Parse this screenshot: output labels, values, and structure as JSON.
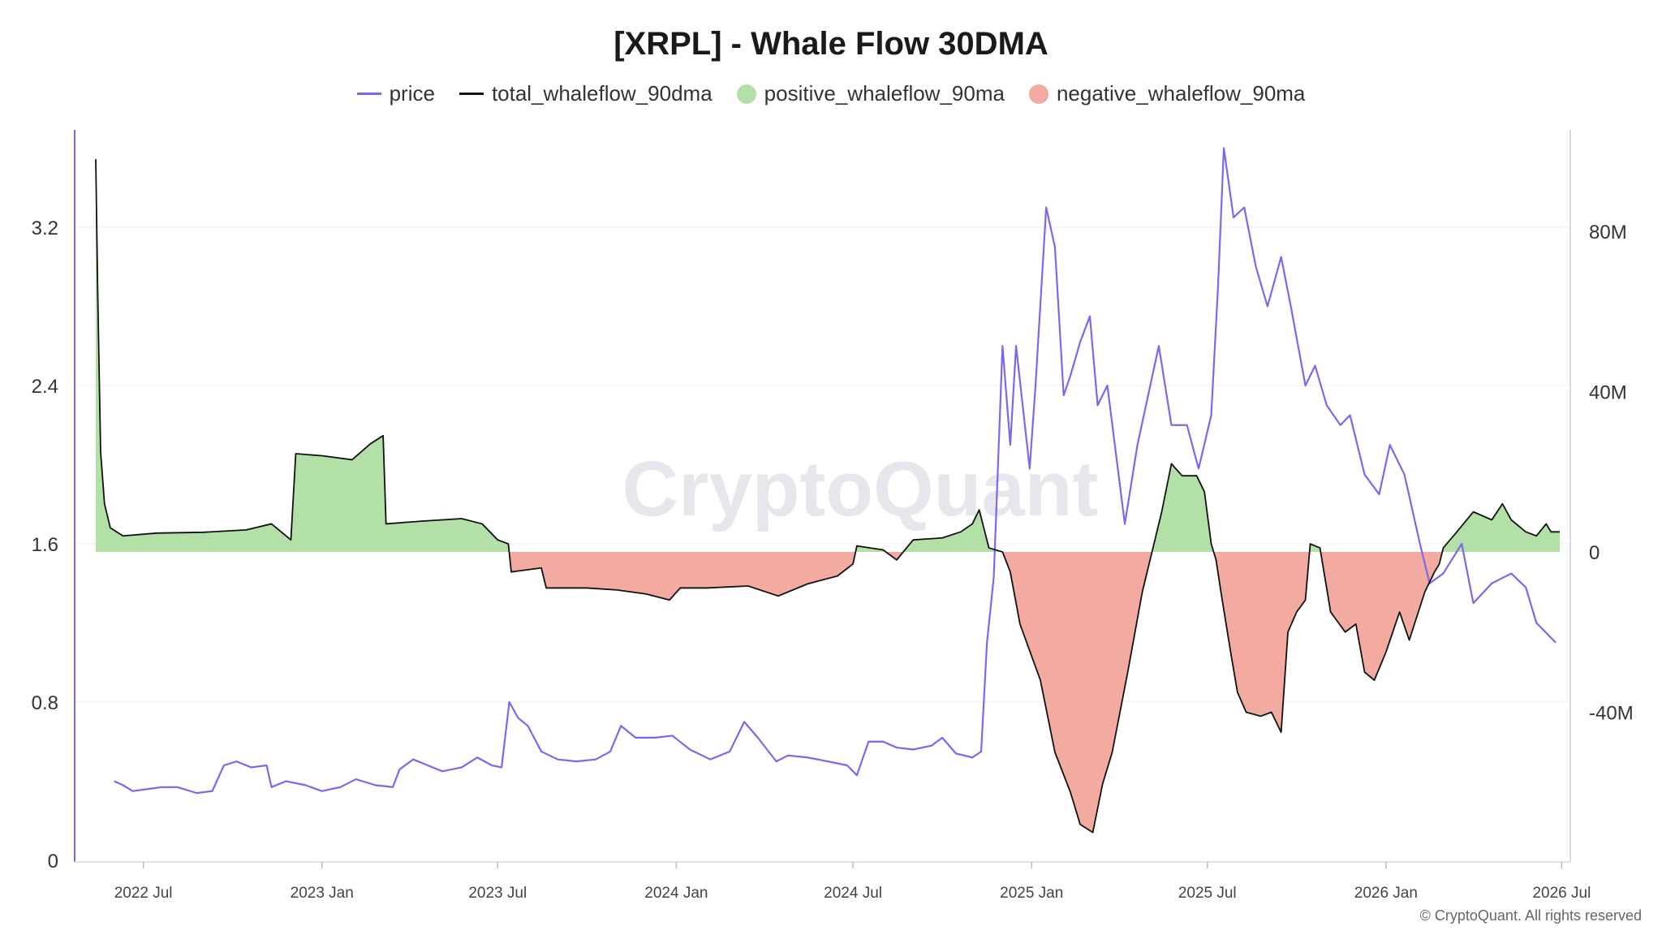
{
  "title": "[XRPL] - Whale Flow 30DMA",
  "legend": [
    {
      "label": "price",
      "color": "#7b68ee",
      "kind": "line"
    },
    {
      "label": "total_whaleflow_90dma",
      "color": "#111111",
      "kind": "line"
    },
    {
      "label": "positive_whaleflow_90ma",
      "color": "#b2e0a6",
      "kind": "dot"
    },
    {
      "label": "negative_whaleflow_90ma",
      "color": "#f2aaa1",
      "kind": "dot"
    }
  ],
  "watermark": "CryptoQuant",
  "copyright": "© CryptoQuant. All rights reserved",
  "chart_data": {
    "type": "line",
    "title": "[XRPL] - Whale Flow 30DMA",
    "grid": true,
    "legend_position": "top-center",
    "x_range": [
      "2022-05-13",
      "2026-06-29"
    ],
    "x_ticks": [
      {
        "date": "2022-07-01",
        "label": "2022 Jul"
      },
      {
        "date": "2023-01-01",
        "label": "2023 Jan"
      },
      {
        "date": "2023-07-01",
        "label": "2023 Jul"
      },
      {
        "date": "2024-01-01",
        "label": "2024 Jan"
      },
      {
        "date": "2024-07-01",
        "label": "2024 Jul"
      },
      {
        "date": "2025-01-01",
        "label": "2025 Jan"
      },
      {
        "date": "2025-07-01",
        "label": "2025 Jul"
      },
      {
        "date": "2026-01-01",
        "label": "2026 Jan"
      },
      {
        "date": "2026-07-01",
        "label": "2026 Jul"
      }
    ],
    "y_left": {
      "min": 0,
      "max": 3.3,
      "ticks": [
        0,
        0.8,
        1.6,
        2.4,
        3.2
      ],
      "tick_labels": [
        "0",
        "0.8",
        "1.6",
        "2.4",
        "3.2"
      ]
    },
    "y_right": {
      "min": -80000000,
      "max": 100000000,
      "ticks": [
        -40000000,
        0,
        40000000,
        80000000
      ],
      "tick_labels": [
        "-40M",
        "0",
        "40M",
        "80M"
      ]
    },
    "series": [
      {
        "name": "price",
        "axis": "left",
        "color": "#7b68ee",
        "points": [
          [
            "2022-06-01",
            0.4
          ],
          [
            "2022-06-10",
            0.38
          ],
          [
            "2022-06-20",
            0.35
          ],
          [
            "2022-07-05",
            0.36
          ],
          [
            "2022-07-20",
            0.37
          ],
          [
            "2022-08-05",
            0.37
          ],
          [
            "2022-08-25",
            0.34
          ],
          [
            "2022-09-10",
            0.35
          ],
          [
            "2022-09-22",
            0.48
          ],
          [
            "2022-10-05",
            0.5
          ],
          [
            "2022-10-20",
            0.47
          ],
          [
            "2022-11-05",
            0.48
          ],
          [
            "2022-11-10",
            0.37
          ],
          [
            "2022-11-25",
            0.4
          ],
          [
            "2022-12-15",
            0.38
          ],
          [
            "2023-01-01",
            0.35
          ],
          [
            "2023-01-20",
            0.37
          ],
          [
            "2023-02-05",
            0.41
          ],
          [
            "2023-02-25",
            0.38
          ],
          [
            "2023-03-15",
            0.37
          ],
          [
            "2023-03-22",
            0.46
          ],
          [
            "2023-04-05",
            0.51
          ],
          [
            "2023-04-20",
            0.48
          ],
          [
            "2023-05-05",
            0.45
          ],
          [
            "2023-05-25",
            0.47
          ],
          [
            "2023-06-10",
            0.52
          ],
          [
            "2023-06-25",
            0.48
          ],
          [
            "2023-07-05",
            0.47
          ],
          [
            "2023-07-13",
            0.8
          ],
          [
            "2023-07-22",
            0.72
          ],
          [
            "2023-08-01",
            0.68
          ],
          [
            "2023-08-15",
            0.55
          ],
          [
            "2023-09-01",
            0.51
          ],
          [
            "2023-09-20",
            0.5
          ],
          [
            "2023-10-10",
            0.51
          ],
          [
            "2023-10-25",
            0.55
          ],
          [
            "2023-11-05",
            0.68
          ],
          [
            "2023-11-20",
            0.62
          ],
          [
            "2023-12-10",
            0.62
          ],
          [
            "2023-12-28",
            0.63
          ],
          [
            "2024-01-15",
            0.56
          ],
          [
            "2024-02-05",
            0.51
          ],
          [
            "2024-02-25",
            0.55
          ],
          [
            "2024-03-11",
            0.7
          ],
          [
            "2024-03-25",
            0.62
          ],
          [
            "2024-04-13",
            0.5
          ],
          [
            "2024-04-25",
            0.53
          ],
          [
            "2024-05-15",
            0.52
          ],
          [
            "2024-06-05",
            0.5
          ],
          [
            "2024-06-25",
            0.48
          ],
          [
            "2024-07-05",
            0.43
          ],
          [
            "2024-07-17",
            0.6
          ],
          [
            "2024-08-01",
            0.6
          ],
          [
            "2024-08-15",
            0.57
          ],
          [
            "2024-09-01",
            0.56
          ],
          [
            "2024-09-20",
            0.58
          ],
          [
            "2024-10-01",
            0.62
          ],
          [
            "2024-10-15",
            0.54
          ],
          [
            "2024-11-01",
            0.52
          ],
          [
            "2024-11-10",
            0.55
          ],
          [
            "2024-11-16",
            1.1
          ],
          [
            "2024-11-23",
            1.43
          ],
          [
            "2024-12-02",
            2.6
          ],
          [
            "2024-12-10",
            2.1
          ],
          [
            "2024-12-16",
            2.6
          ],
          [
            "2024-12-30",
            1.98
          ],
          [
            "2025-01-05",
            2.4
          ],
          [
            "2025-01-16",
            3.3
          ],
          [
            "2025-01-25",
            3.1
          ],
          [
            "2025-02-03",
            2.35
          ],
          [
            "2025-02-10",
            2.45
          ],
          [
            "2025-02-20",
            2.62
          ],
          [
            "2025-03-02",
            2.75
          ],
          [
            "2025-03-10",
            2.3
          ],
          [
            "2025-03-20",
            2.4
          ],
          [
            "2025-04-07",
            1.7
          ],
          [
            "2025-04-20",
            2.1
          ],
          [
            "2025-05-12",
            2.6
          ],
          [
            "2025-05-25",
            2.2
          ],
          [
            "2025-06-10",
            2.2
          ],
          [
            "2025-06-22",
            1.98
          ],
          [
            "2025-07-05",
            2.25
          ],
          [
            "2025-07-12",
            2.9
          ],
          [
            "2025-07-18",
            3.6
          ],
          [
            "2025-07-28",
            3.25
          ],
          [
            "2025-08-08",
            3.3
          ],
          [
            "2025-08-20",
            3.0
          ],
          [
            "2025-09-01",
            2.8
          ],
          [
            "2025-09-15",
            3.05
          ],
          [
            "2025-09-25",
            2.8
          ],
          [
            "2025-10-10",
            2.4
          ],
          [
            "2025-10-20",
            2.5
          ],
          [
            "2025-11-01",
            2.3
          ],
          [
            "2025-11-15",
            2.2
          ],
          [
            "2025-11-25",
            2.25
          ],
          [
            "2025-12-10",
            1.95
          ],
          [
            "2025-12-25",
            1.85
          ],
          [
            "2026-01-05",
            2.1
          ],
          [
            "2026-01-20",
            1.95
          ],
          [
            "2026-02-05",
            1.6
          ],
          [
            "2026-02-15",
            1.4
          ],
          [
            "2026-03-01",
            1.45
          ],
          [
            "2026-03-20",
            1.6
          ],
          [
            "2026-04-01",
            1.3
          ],
          [
            "2026-04-20",
            1.4
          ],
          [
            "2026-05-10",
            1.45
          ],
          [
            "2026-05-25",
            1.38
          ],
          [
            "2026-06-05",
            1.2
          ],
          [
            "2026-06-15",
            1.15
          ],
          [
            "2026-06-25",
            1.1
          ]
        ]
      },
      {
        "name": "total_whaleflow_90dma",
        "axis": "right",
        "color": "#111111",
        "points": [
          [
            "2022-05-13",
            98000000
          ],
          [
            "2022-05-15",
            65000000
          ],
          [
            "2022-05-18",
            25000000
          ],
          [
            "2022-05-22",
            12000000
          ],
          [
            "2022-05-28",
            6000000
          ],
          [
            "2022-06-10",
            4000000
          ],
          [
            "2022-07-15",
            4700000
          ],
          [
            "2022-09-01",
            4900000
          ],
          [
            "2022-10-15",
            5500000
          ],
          [
            "2022-11-10",
            7000000
          ],
          [
            "2022-11-30",
            3000000
          ],
          [
            "2022-12-05",
            24500000
          ],
          [
            "2023-01-01",
            24000000
          ],
          [
            "2023-02-01",
            23000000
          ],
          [
            "2023-02-20",
            27000000
          ],
          [
            "2023-03-05",
            29000000
          ],
          [
            "2023-03-08",
            7000000
          ],
          [
            "2023-04-15",
            7700000
          ],
          [
            "2023-05-25",
            8300000
          ],
          [
            "2023-06-15",
            7000000
          ],
          [
            "2023-07-01",
            3000000
          ],
          [
            "2023-07-12",
            2000000
          ],
          [
            "2023-07-15",
            -5000000
          ],
          [
            "2023-08-15",
            -4000000
          ],
          [
            "2023-08-20",
            -9000000
          ],
          [
            "2023-10-01",
            -9000000
          ],
          [
            "2023-11-01",
            -9500000
          ],
          [
            "2023-12-01",
            -10500000
          ],
          [
            "2023-12-25",
            -12000000
          ],
          [
            "2024-01-05",
            -9000000
          ],
          [
            "2024-02-01",
            -9000000
          ],
          [
            "2024-03-15",
            -8500000
          ],
          [
            "2024-04-15",
            -11000000
          ],
          [
            "2024-05-15",
            -8000000
          ],
          [
            "2024-06-15",
            -6000000
          ],
          [
            "2024-07-01",
            -3000000
          ],
          [
            "2024-07-05",
            1500000
          ],
          [
            "2024-08-01",
            500000
          ],
          [
            "2024-08-15",
            -2000000
          ],
          [
            "2024-09-01",
            3000000
          ],
          [
            "2024-10-01",
            3500000
          ],
          [
            "2024-10-20",
            5000000
          ],
          [
            "2024-11-01",
            7000000
          ],
          [
            "2024-11-08",
            10500000
          ],
          [
            "2024-11-18",
            1000000
          ],
          [
            "2024-12-02",
            0
          ],
          [
            "2024-12-10",
            -5000000
          ],
          [
            "2024-12-20",
            -18000000
          ],
          [
            "2025-01-10",
            -32000000
          ],
          [
            "2025-01-25",
            -50000000
          ],
          [
            "2025-02-10",
            -60000000
          ],
          [
            "2025-02-20",
            -68000000
          ],
          [
            "2025-03-05",
            -70000000
          ],
          [
            "2025-03-15",
            -58000000
          ],
          [
            "2025-03-25",
            -50000000
          ],
          [
            "2025-04-10",
            -30000000
          ],
          [
            "2025-04-25",
            -10000000
          ],
          [
            "2025-05-05",
            0
          ],
          [
            "2025-05-15",
            10000000
          ],
          [
            "2025-05-25",
            22000000
          ],
          [
            "2025-06-05",
            19000000
          ],
          [
            "2025-06-20",
            19000000
          ],
          [
            "2025-06-28",
            15000000
          ],
          [
            "2025-07-05",
            2000000
          ],
          [
            "2025-07-10",
            -2000000
          ],
          [
            "2025-07-15",
            -10000000
          ],
          [
            "2025-07-25",
            -25000000
          ],
          [
            "2025-08-01",
            -35000000
          ],
          [
            "2025-08-10",
            -40000000
          ],
          [
            "2025-08-25",
            -41000000
          ],
          [
            "2025-09-05",
            -40000000
          ],
          [
            "2025-09-15",
            -45000000
          ],
          [
            "2025-09-22",
            -20000000
          ],
          [
            "2025-10-01",
            -15000000
          ],
          [
            "2025-10-10",
            -12000000
          ],
          [
            "2025-10-15",
            2000000
          ],
          [
            "2025-10-25",
            1000000
          ],
          [
            "2025-11-05",
            -15000000
          ],
          [
            "2025-11-20",
            -20000000
          ],
          [
            "2025-12-01",
            -18000000
          ],
          [
            "2025-12-10",
            -30000000
          ],
          [
            "2025-12-20",
            -32000000
          ],
          [
            "2026-01-01",
            -25000000
          ],
          [
            "2026-01-15",
            -15000000
          ],
          [
            "2026-01-25",
            -22000000
          ],
          [
            "2026-02-10",
            -10000000
          ],
          [
            "2026-02-20",
            -5000000
          ],
          [
            "2026-02-25",
            -3000000
          ],
          [
            "2026-03-01",
            1000000
          ],
          [
            "2026-03-15",
            5000000
          ],
          [
            "2026-04-01",
            10000000
          ],
          [
            "2026-04-20",
            8000000
          ],
          [
            "2026-05-01",
            12000000
          ],
          [
            "2026-05-10",
            8000000
          ],
          [
            "2026-05-25",
            5000000
          ],
          [
            "2026-06-05",
            4000000
          ],
          [
            "2026-06-15",
            7000000
          ],
          [
            "2026-06-20",
            5000000
          ],
          [
            "2026-06-29",
            5000000
          ]
        ]
      }
    ],
    "fills": {
      "positive_color": "#b2e0a6",
      "negative_color": "#f2aaa1"
    }
  }
}
